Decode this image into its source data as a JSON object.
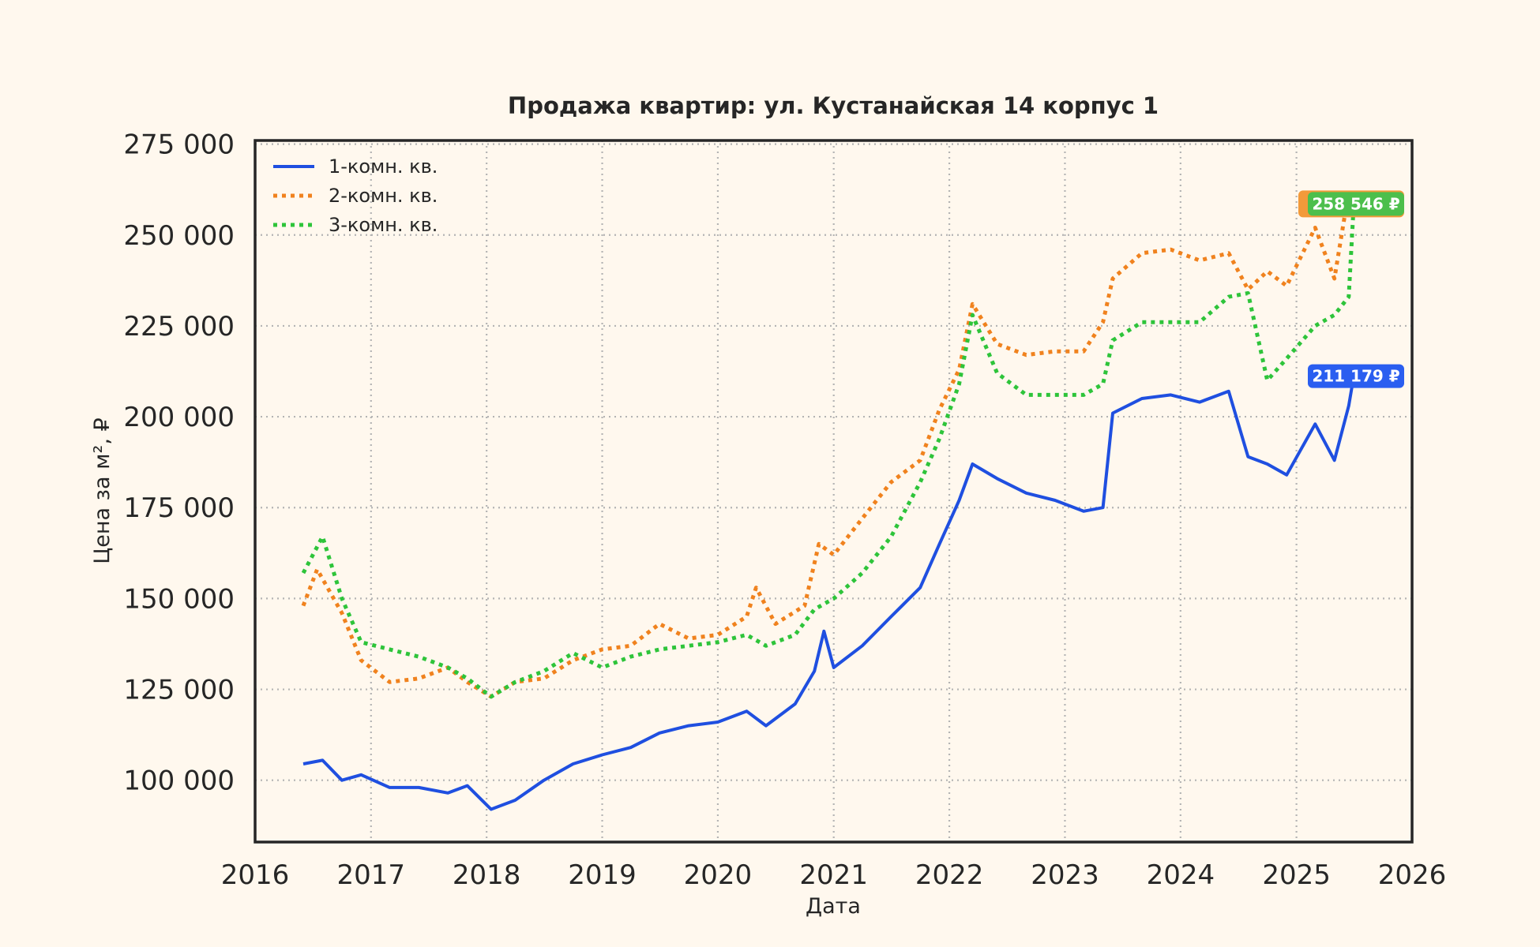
{
  "chart_data": {
    "type": "line",
    "title": "Продажа квартир: ул. Кустанайская 14 корпус 1",
    "xlabel": "Дата",
    "ylabel": "Цена за м², ₽",
    "xlim": [
      "2016-01-01",
      "2026-01-01"
    ],
    "ylim": [
      83000,
      276000
    ],
    "x_ticks": [
      "2016",
      "2017",
      "2018",
      "2019",
      "2020",
      "2021",
      "2022",
      "2023",
      "2024",
      "2025",
      "2026"
    ],
    "y_ticks": [
      100000,
      125000,
      150000,
      175000,
      200000,
      225000,
      250000,
      275000
    ],
    "y_tick_labels": [
      "100 000",
      "125 000",
      "150 000",
      "175 000",
      "200 000",
      "225 000",
      "250 000",
      "275 000"
    ],
    "grid": true,
    "legend_position": "top-left",
    "series": [
      {
        "name": "1-комн. кв.",
        "color": "#1f4fe0",
        "style": "solid",
        "x": [
          "2016-06-01",
          "2016-08-01",
          "2016-10-01",
          "2016-12-01",
          "2017-03-01",
          "2017-06-01",
          "2017-09-01",
          "2017-11-01",
          "2018-01-15",
          "2018-04-01",
          "2018-07-01",
          "2018-10-01",
          "2019-01-01",
          "2019-04-01",
          "2019-07-01",
          "2019-10-01",
          "2020-01-01",
          "2020-04-01",
          "2020-06-01",
          "2020-09-01",
          "2020-11-01",
          "2020-12-01",
          "2021-01-01",
          "2021-04-01",
          "2021-07-01",
          "2021-10-01",
          "2021-12-01",
          "2022-02-01",
          "2022-03-15",
          "2022-06-01",
          "2022-09-01",
          "2022-12-01",
          "2023-03-01",
          "2023-05-01",
          "2023-06-01",
          "2023-09-01",
          "2023-12-01",
          "2024-03-01",
          "2024-06-01",
          "2024-08-01",
          "2024-10-01",
          "2024-12-01",
          "2025-03-01",
          "2025-05-01",
          "2025-06-15",
          "2025-07-01"
        ],
        "values": [
          104500,
          105500,
          100000,
          101500,
          98000,
          98000,
          96500,
          98500,
          92000,
          94500,
          100000,
          104500,
          107000,
          109000,
          113000,
          115000,
          116000,
          119000,
          115000,
          121000,
          130000,
          141000,
          131000,
          137000,
          145000,
          153000,
          165000,
          177000,
          187000,
          183000,
          179000,
          177000,
          174000,
          175000,
          201000,
          205000,
          206000,
          204000,
          207000,
          189000,
          187000,
          184000,
          198000,
          188000,
          203000,
          211179
        ]
      },
      {
        "name": "2-комн. кв.",
        "color": "#f0821e",
        "style": "dotted",
        "x": [
          "2016-06-01",
          "2016-07-15",
          "2016-10-01",
          "2016-12-01",
          "2017-03-01",
          "2017-06-01",
          "2017-09-01",
          "2017-11-01",
          "2018-01-15",
          "2018-04-01",
          "2018-07-01",
          "2018-10-01",
          "2019-01-01",
          "2019-04-01",
          "2019-07-01",
          "2019-10-01",
          "2020-01-01",
          "2020-04-01",
          "2020-05-01",
          "2020-07-01",
          "2020-10-01",
          "2020-11-15",
          "2021-01-01",
          "2021-04-01",
          "2021-07-01",
          "2021-10-01",
          "2021-12-01",
          "2022-02-01",
          "2022-03-15",
          "2022-06-01",
          "2022-09-01",
          "2022-12-01",
          "2023-03-01",
          "2023-05-01",
          "2023-06-01",
          "2023-09-01",
          "2023-12-01",
          "2024-03-01",
          "2024-06-01",
          "2024-08-01",
          "2024-10-01",
          "2024-12-01",
          "2025-03-01",
          "2025-05-01",
          "2025-06-15",
          "2025-07-01"
        ],
        "values": [
          148000,
          158000,
          146000,
          133000,
          127000,
          128000,
          131000,
          127000,
          123000,
          127000,
          128000,
          133000,
          136000,
          137000,
          143000,
          139000,
          140000,
          145000,
          153000,
          143000,
          148000,
          165000,
          162000,
          172000,
          182000,
          188000,
          202000,
          213000,
          231000,
          220000,
          217000,
          218000,
          218000,
          226000,
          238000,
          245000,
          246000,
          243000,
          245000,
          235000,
          240000,
          236000,
          252000,
          238000,
          262000,
          258546
        ]
      },
      {
        "name": "3-комн. кв.",
        "color": "#2ec43a",
        "style": "dotted",
        "x": [
          "2016-06-01",
          "2016-08-01",
          "2016-10-01",
          "2016-12-01",
          "2017-03-01",
          "2017-06-01",
          "2017-09-01",
          "2017-11-01",
          "2018-01-15",
          "2018-04-01",
          "2018-07-01",
          "2018-10-01",
          "2019-01-01",
          "2019-04-01",
          "2019-07-01",
          "2019-10-01",
          "2020-01-01",
          "2020-04-01",
          "2020-06-01",
          "2020-09-01",
          "2020-11-01",
          "2021-01-01",
          "2021-04-01",
          "2021-07-01",
          "2021-10-01",
          "2021-12-01",
          "2022-02-01",
          "2022-03-15",
          "2022-06-01",
          "2022-09-01",
          "2022-12-01",
          "2023-03-01",
          "2023-05-01",
          "2023-06-01",
          "2023-09-01",
          "2023-12-01",
          "2024-03-01",
          "2024-06-01",
          "2024-08-01",
          "2024-10-01",
          "2024-12-01",
          "2025-03-01",
          "2025-05-01",
          "2025-06-15",
          "2025-07-01"
        ],
        "values": [
          157000,
          167000,
          150000,
          138000,
          136000,
          134000,
          131000,
          128000,
          123000,
          127000,
          130000,
          135000,
          131000,
          134000,
          136000,
          137000,
          138000,
          140000,
          137000,
          140000,
          147000,
          150000,
          157000,
          167000,
          182000,
          194000,
          209000,
          228000,
          212000,
          206000,
          206000,
          206000,
          209000,
          221000,
          226000,
          226000,
          226000,
          233000,
          234000,
          210000,
          216000,
          225000,
          228000,
          233000,
          258546
        ]
      }
    ],
    "annotations": [
      {
        "series": "2-комн. кв.",
        "text": "",
        "color": "#f39a3a"
      },
      {
        "series": "3-комн. кв.",
        "text": "258 546 ₽",
        "color": "#4cbf4c"
      },
      {
        "series": "1-комн. кв.",
        "text": "211 179 ₽",
        "color": "#2a5ef0"
      }
    ]
  }
}
